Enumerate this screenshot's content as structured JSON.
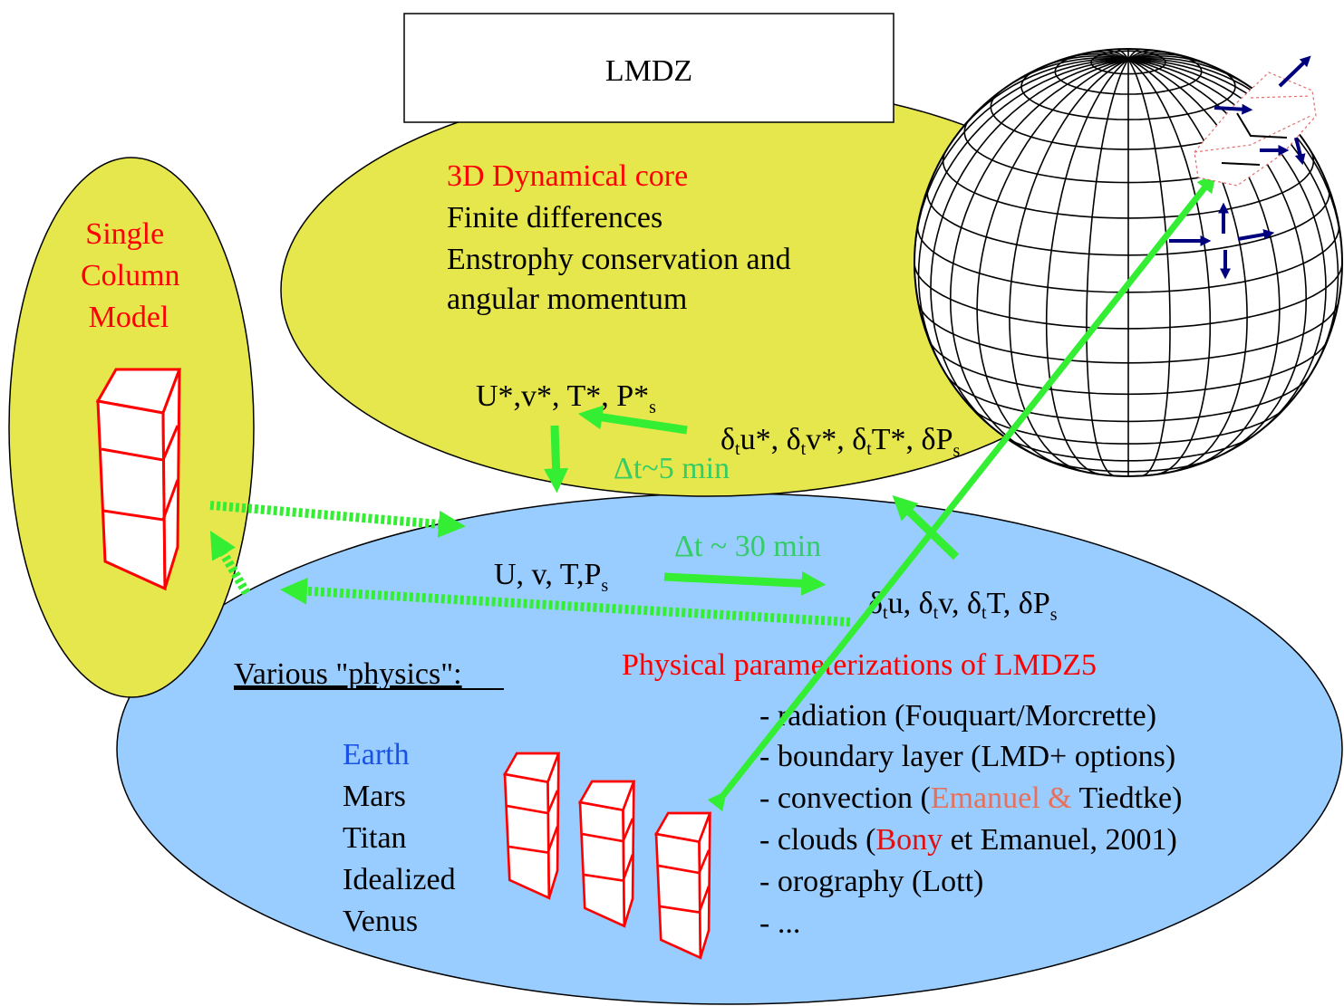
{
  "title_box": {
    "label": "LMDZ"
  },
  "dynamics": {
    "heading": "3D Dynamical core",
    "lines": [
      "Finite differences",
      "Enstrophy conservation and",
      "angular momentum"
    ],
    "state_vars": [
      "U*,v*, T*, P*",
      "s"
    ],
    "tendencies": [
      "δ",
      "t",
      "u*, δ",
      "t",
      "v*, δ",
      "t",
      "T*, δP",
      "s"
    ],
    "dt_label": "Δt~5 min"
  },
  "physics": {
    "state_vars": [
      "U, v, T,P",
      "s"
    ],
    "dt_label": "Δt ~  30 min",
    "tendencies": [
      "δ",
      "t",
      "u, δ",
      "t",
      "v, δ",
      "t",
      "T, δP",
      "s"
    ],
    "various_label": "Various \"physics\":",
    "planets": [
      "Earth",
      "Mars",
      "Titan",
      "Idealized",
      "Venus"
    ],
    "heading": "Physical parameterizations of LMDZ5",
    "param_radiation": "- radiation (Fouquart/Morcrette)",
    "param_boundary": "- boundary layer (LMD+ options)",
    "param_convection": [
      "- convection (",
      "Emanuel & ",
      "Tiedtke)"
    ],
    "param_clouds": [
      "- clouds (",
      "Bony",
      " et Emanuel, 2001)"
    ],
    "param_orography": "- orography (Lott)",
    "param_more": "- ..."
  },
  "scm": {
    "label_lines": [
      "Single",
      "Column",
      "Model"
    ]
  },
  "colors": {
    "dynamics_ellipse": "#e6e64d",
    "physics_ellipse": "#99ccff",
    "arrow_green": "#33ee33",
    "heading_red": "#ff0000",
    "earth_blue": "#1a52e6",
    "dt_green": "#33cc66",
    "arrow_navy": "#00007f"
  },
  "icons": [
    "globe-grid-icon",
    "column-box-icon",
    "arrow-icon"
  ]
}
